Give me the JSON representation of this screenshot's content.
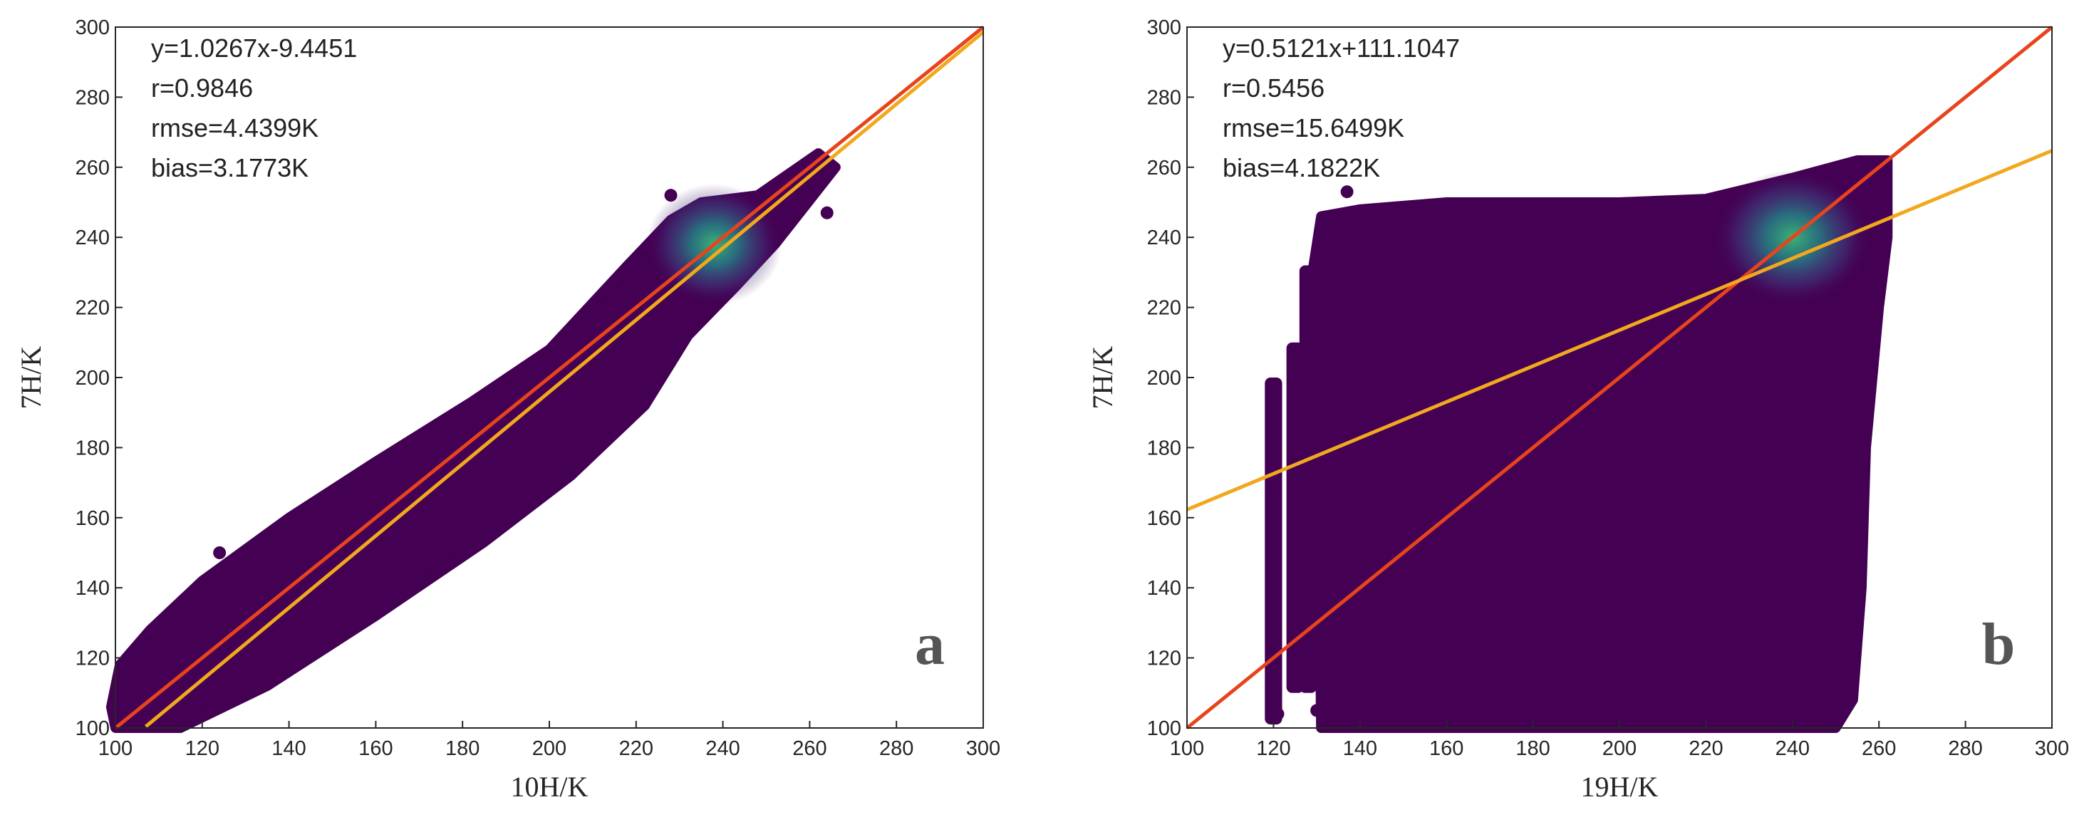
{
  "chart_data": [
    {
      "type": "scatter",
      "panel_label": "a",
      "xlabel": "10H/K",
      "ylabel": "7H/K",
      "xlim": [
        100,
        300
      ],
      "ylim": [
        100,
        300
      ],
      "xticks": [
        100,
        120,
        140,
        160,
        180,
        200,
        220,
        240,
        260,
        280,
        300
      ],
      "yticks": [
        100,
        120,
        140,
        160,
        180,
        200,
        220,
        240,
        260,
        280,
        300
      ],
      "stats": [
        "y=1.0267x-9.4451",
        "r=0.9846",
        "rmse=4.4399K",
        "bias=3.1773K"
      ],
      "density_color_low": "#440154",
      "density_color_high": "#2fb47c",
      "density_peak": [
        238,
        238
      ],
      "one_to_one_line": {
        "color": "#e8441c",
        "x": [
          100,
          300
        ],
        "y": [
          100,
          300
        ]
      },
      "fit_line": {
        "color": "#f2a81d",
        "slope": 1.0267,
        "intercept": -9.4451,
        "x": [
          107,
          300
        ]
      },
      "cloud_outline": [
        [
          100,
          100
        ],
        [
          115,
          100
        ],
        [
          135,
          112
        ],
        [
          160,
          132
        ],
        [
          185,
          153
        ],
        [
          205,
          172
        ],
        [
          222,
          192
        ],
        [
          232,
          212
        ],
        [
          243,
          226
        ],
        [
          252,
          238
        ],
        [
          266,
          260
        ],
        [
          262,
          264
        ],
        [
          248,
          252
        ],
        [
          235,
          250
        ],
        [
          228,
          245
        ],
        [
          218,
          232
        ],
        [
          200,
          208
        ],
        [
          182,
          193
        ],
        [
          160,
          176
        ],
        [
          140,
          160
        ],
        [
          120,
          142
        ],
        [
          108,
          128
        ],
        [
          101,
          118
        ],
        [
          99,
          106
        ]
      ],
      "outlier_points": [
        [
          228,
          252
        ],
        [
          264,
          247
        ],
        [
          249,
          252
        ],
        [
          137,
          146
        ],
        [
          124,
          150
        ]
      ]
    },
    {
      "type": "scatter",
      "panel_label": "b",
      "xlabel": "19H/K",
      "ylabel": "7H/K",
      "xlim": [
        100,
        300
      ],
      "ylim": [
        100,
        300
      ],
      "xticks": [
        100,
        120,
        140,
        160,
        180,
        200,
        220,
        240,
        260,
        280,
        300
      ],
      "yticks": [
        100,
        120,
        140,
        160,
        180,
        200,
        220,
        240,
        260,
        280,
        300
      ],
      "stats": [
        "y=0.5121x+111.1047",
        "r=0.5456",
        "rmse=15.6499K",
        "bias=4.1822K"
      ],
      "density_color_low": "#440154",
      "density_color_high": "#2fb47c",
      "density_peak": [
        240,
        240
      ],
      "one_to_one_line": {
        "color": "#e8441c",
        "x": [
          100,
          300
        ],
        "y": [
          100,
          300
        ]
      },
      "fit_line": {
        "color": "#f2a81d",
        "slope": 0.5121,
        "intercept": 111.1047,
        "x": [
          100,
          300
        ]
      },
      "cloud_outline": [
        [
          131,
          100
        ],
        [
          250,
          100
        ],
        [
          254,
          108
        ],
        [
          256,
          140
        ],
        [
          257,
          180
        ],
        [
          260,
          220
        ],
        [
          262,
          240
        ],
        [
          262,
          262
        ],
        [
          255,
          262
        ],
        [
          240,
          257
        ],
        [
          220,
          251
        ],
        [
          200,
          250
        ],
        [
          180,
          250
        ],
        [
          160,
          250
        ],
        [
          140,
          248
        ],
        [
          131,
          246
        ],
        [
          129,
          230
        ],
        [
          130,
          200
        ]
      ],
      "strips": [
        [
          118,
          122,
          101,
          200
        ],
        [
          123,
          127,
          110,
          210
        ],
        [
          126,
          130,
          110,
          232
        ],
        [
          137,
          141,
          115,
          238
        ],
        [
          144,
          148,
          115,
          240
        ]
      ],
      "outlier_points": [
        [
          137,
          253
        ],
        [
          121,
          104
        ],
        [
          130,
          105
        ]
      ]
    }
  ]
}
